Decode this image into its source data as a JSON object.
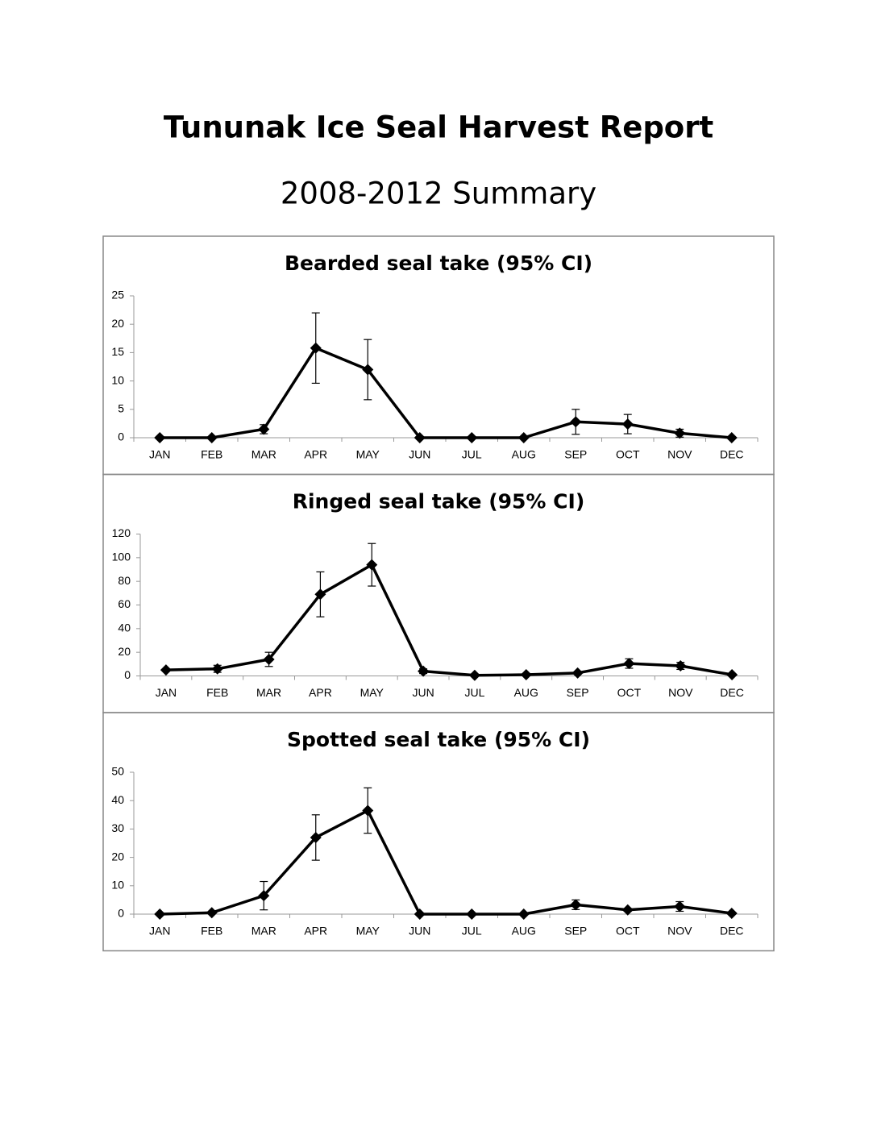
{
  "header": {
    "title": "Tununak Ice Seal Harvest Report",
    "subtitle": "2008-2012 Summary"
  },
  "chart_data": [
    {
      "type": "line",
      "title": "Bearded seal take (95% CI)",
      "color": "#000000",
      "grid": false,
      "categories": [
        "JAN",
        "FEB",
        "MAR",
        "APR",
        "MAY",
        "JUN",
        "JUL",
        "AUG",
        "SEP",
        "OCT",
        "NOV",
        "DEC"
      ],
      "values": [
        0,
        0,
        1.5,
        15.8,
        12,
        0,
        0,
        0,
        2.8,
        2.4,
        0.8,
        0
      ],
      "errors": [
        0,
        0,
        0.8,
        6.2,
        5.3,
        0,
        0,
        0,
        2.2,
        1.7,
        0.7,
        0
      ],
      "ylim": [
        0,
        25
      ],
      "yticks": [
        0,
        5,
        10,
        15,
        20,
        25
      ]
    },
    {
      "type": "line",
      "title": "Ringed seal take (95% CI)",
      "color": "#000000",
      "grid": false,
      "categories": [
        "JAN",
        "FEB",
        "MAR",
        "APR",
        "MAY",
        "JUN",
        "JUL",
        "AUG",
        "SEP",
        "OCT",
        "NOV",
        "DEC"
      ],
      "values": [
        5,
        6,
        14,
        69,
        94,
        4,
        0.5,
        1,
        2.5,
        10.5,
        8.5,
        1
      ],
      "errors": [
        1,
        3,
        6,
        19,
        18,
        2,
        0,
        0,
        1,
        4,
        3,
        0
      ],
      "ylim": [
        0,
        120
      ],
      "yticks": [
        0,
        20,
        40,
        60,
        80,
        100,
        120
      ]
    },
    {
      "type": "line",
      "title": "Spotted seal take (95% CI)",
      "color": "#000000",
      "grid": false,
      "categories": [
        "JAN",
        "FEB",
        "MAR",
        "APR",
        "MAY",
        "JUN",
        "JUL",
        "AUG",
        "SEP",
        "OCT",
        "NOV",
        "DEC"
      ],
      "values": [
        0,
        0.5,
        6.5,
        27,
        36.5,
        0,
        0,
        0,
        3.3,
        1.5,
        2.7,
        0.3
      ],
      "errors": [
        0,
        0,
        5,
        8,
        8,
        0,
        0,
        0,
        1.7,
        0.5,
        1.7,
        0
      ],
      "ylim": [
        0,
        50
      ],
      "yticks": [
        0,
        10,
        20,
        30,
        40,
        50
      ]
    }
  ]
}
